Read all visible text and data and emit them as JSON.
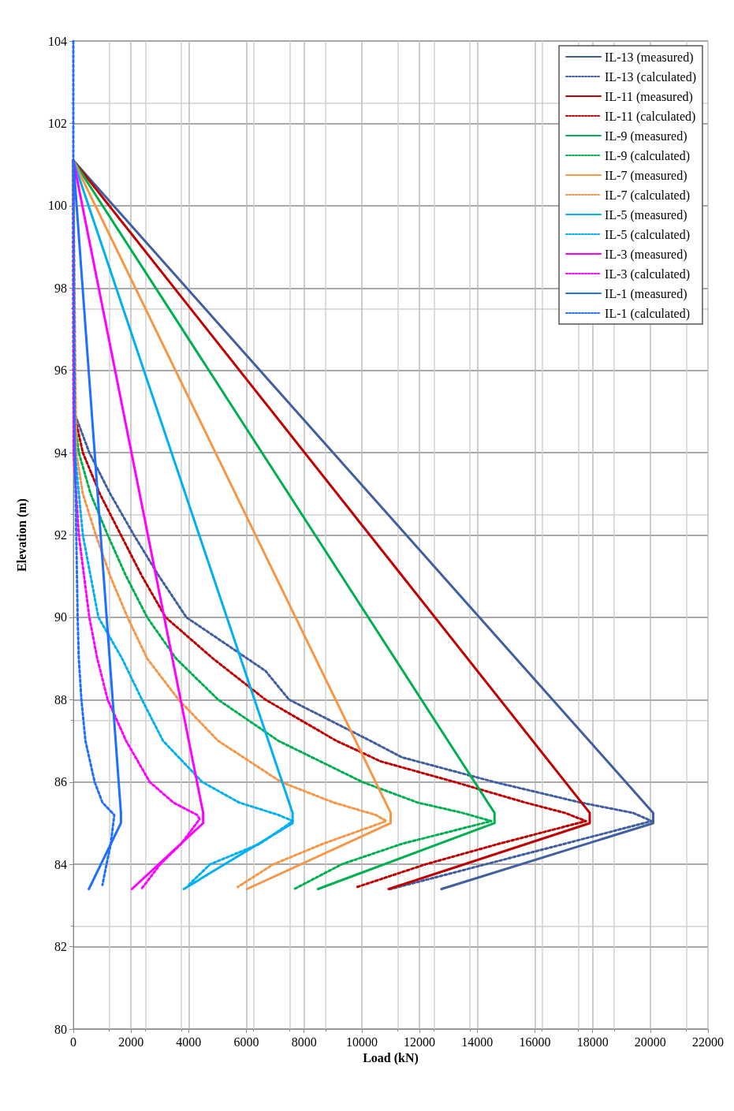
{
  "chart_data": {
    "type": "line",
    "xlabel": "Load (kN)",
    "ylabel": "Elevation (m)",
    "xlim": [
      0,
      22000
    ],
    "xticks": [
      0,
      2000,
      4000,
      6000,
      8000,
      10000,
      12000,
      14000,
      16000,
      18000,
      20000,
      22000
    ],
    "ylim": [
      80,
      104
    ],
    "yticks": [
      80,
      82,
      84,
      86,
      88,
      90,
      92,
      94,
      96,
      98,
      100,
      102,
      104
    ],
    "grid": true,
    "legend": "top right",
    "marker": "none",
    "series": [
      {
        "name": "IL-13 (measured)",
        "color": "#3f5fa0",
        "line_style": "solid",
        "x": [
          0,
          20100,
          20100,
          12760
        ],
        "values": [
          101.1,
          85.25,
          85.0,
          83.4
        ]
      },
      {
        "name": "IL-13 (calculated)",
        "color": "#3f5fa0",
        "line_style": "dotted",
        "x": [
          0,
          20,
          555,
          1280,
          2100,
          2970,
          3920,
          6660,
          7480,
          10300,
          11390,
          14590,
          17590,
          19400,
          20050,
          11000
        ],
        "values": [
          101.1,
          95,
          94,
          93,
          92,
          91,
          90,
          88.7,
          88,
          87,
          86.6,
          86,
          85.5,
          85.25,
          85.05,
          83.4
        ]
      },
      {
        "name": "IL-11 (measured)",
        "color": "#c00000",
        "line_style": "solid",
        "x": [
          0,
          17900,
          17900,
          10930
        ],
        "values": [
          101.1,
          85.25,
          85.0,
          83.4
        ]
      },
      {
        "name": "IL-11 (calculated)",
        "color": "#c00000",
        "line_style": "dotted",
        "x": [
          0,
          15,
          330,
          920,
          1650,
          2380,
          3200,
          4840,
          6660,
          9120,
          10660,
          13220,
          15670,
          17040,
          17770,
          14760,
          12210,
          9840
        ],
        "values": [
          101.1,
          95,
          94,
          93,
          92,
          91,
          90,
          89,
          88,
          87,
          86.5,
          86,
          85.5,
          85.25,
          85.05,
          84.5,
          84,
          83.45
        ]
      },
      {
        "name": "IL-9 (measured)",
        "color": "#00b050",
        "line_style": "solid",
        "x": [
          0,
          14600,
          14600,
          8480
        ],
        "values": [
          101.1,
          85.25,
          85.0,
          83.4
        ]
      },
      {
        "name": "IL-9 (calculated)",
        "color": "#00b050",
        "line_style": "dotted",
        "x": [
          0,
          10,
          190,
          600,
          1190,
          1830,
          2560,
          3560,
          5020,
          7110,
          10020,
          11940,
          13490,
          14490,
          11400,
          9300,
          7660
        ],
        "values": [
          101.1,
          95,
          94,
          93,
          92,
          91,
          90,
          89,
          88,
          87,
          86,
          85.5,
          85.25,
          85.05,
          84.5,
          84,
          83.4
        ]
      },
      {
        "name": "IL-7 (measured)",
        "color": "#f79646",
        "line_style": "solid",
        "x": [
          0,
          11000,
          11000,
          6020
        ],
        "values": [
          101.1,
          85.25,
          85.0,
          83.4
        ]
      },
      {
        "name": "IL-7 (calculated)",
        "color": "#f79646",
        "line_style": "dotted",
        "x": [
          0,
          100,
          330,
          780,
          1280,
          1880,
          2560,
          3650,
          5020,
          7200,
          9030,
          10480,
          10850,
          8660,
          6930,
          5700
        ],
        "values": [
          101.1,
          94,
          93,
          92,
          91,
          90,
          89,
          88,
          87,
          86,
          85.5,
          85.2,
          85.05,
          84.5,
          84,
          83.45
        ]
      },
      {
        "name": "IL-5 (measured)",
        "color": "#00b0f0",
        "line_style": "solid",
        "x": [
          0,
          7600,
          7600,
          3830
        ],
        "values": [
          101.1,
          85.25,
          85.0,
          83.4
        ]
      },
      {
        "name": "IL-5 (calculated)",
        "color": "#00b0f0",
        "line_style": "dotted",
        "x": [
          0,
          10,
          55,
          330,
          870,
          1690,
          2380,
          3110,
          4470,
          5750,
          7110,
          7610,
          6470,
          4740,
          4000
        ],
        "values": [
          101.1,
          95,
          94,
          92,
          90,
          89,
          88,
          87,
          86,
          85.5,
          85.2,
          85.05,
          84.5,
          84,
          83.5
        ]
      },
      {
        "name": "IL-3 (measured)",
        "color": "#ff00ff",
        "line_style": "solid",
        "x": [
          0,
          4500,
          4500,
          2030
        ],
        "values": [
          101.1,
          85.25,
          85.0,
          83.4
        ]
      },
      {
        "name": "IL-3 (calculated)",
        "color": "#ff00ff",
        "line_style": "dotted",
        "x": [
          0,
          10,
          190,
          555,
          830,
          1190,
          1830,
          2650,
          3470,
          4290,
          4380,
          3740,
          3010,
          2360
        ],
        "values": [
          101.1,
          94,
          92,
          90,
          89,
          88,
          87,
          86,
          85.5,
          85.2,
          85.1,
          84.5,
          84,
          83.4
        ]
      },
      {
        "name": "IL-1 (measured)",
        "color": "#1f6fff",
        "line_style": "solid",
        "x": [
          0,
          1650,
          1650,
          540
        ],
        "values": [
          101.1,
          85.25,
          85.0,
          83.4
        ]
      },
      {
        "name": "IL-1 (calculated)",
        "color": "#1f6fff",
        "line_style": "dotted",
        "x": [
          0,
          0,
          55,
          150,
          190,
          280,
          420,
          740,
          1010,
          1420,
          1300,
          1150,
          1010
        ],
        "values": [
          104,
          101.1,
          94,
          90,
          89,
          88,
          87,
          86,
          85.5,
          85.2,
          84.5,
          84,
          83.5
        ]
      }
    ]
  }
}
